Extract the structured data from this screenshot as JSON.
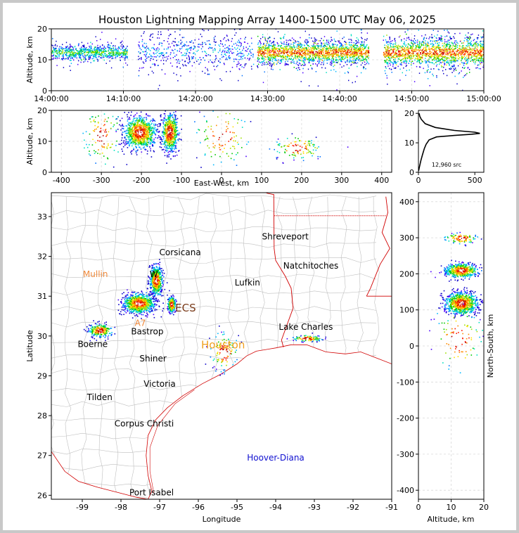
{
  "colors": {
    "frame": "#c8c8c8",
    "county_lines": "#bfbfbf",
    "state_lines": "#d10000",
    "coast": "#d10000",
    "grid": "#d9d9d9",
    "city_default": "#000000",
    "city_mullin": "#f08a3c",
    "city_a7": "#f08a3c",
    "city_houston": "#f0a020",
    "city_ecs": "#7a3b1a",
    "city_hoover": "#1010d0",
    "profile_line": "#000000"
  },
  "chart_data": [
    {
      "id": "altitude-time",
      "type": "scatter",
      "title": "Houston Lightning Mapping Array 1400-1500 UTC May 06, 2025",
      "ylabel": "Altitude, km",
      "xlim": [
        "14:00:00",
        "15:00:00"
      ],
      "ylim": [
        0,
        20
      ],
      "xticks": [
        "14:00:00",
        "14:10:00",
        "14:20:00",
        "14:30:00",
        "14:40:00",
        "14:50:00",
        "15:00:00"
      ],
      "yticks": [
        0,
        10,
        20
      ],
      "grid": true,
      "clusters": [
        {
          "t_start_min": 0,
          "t_end_min": 10.5,
          "alt_center_km": 12.5,
          "alt_spread_km": 1.2,
          "density": "medium"
        },
        {
          "t_start_min": 12,
          "t_end_min": 28,
          "alt_center_km": 13,
          "alt_spread_km": 3,
          "density": "sparse"
        },
        {
          "t_start_min": 28.5,
          "t_end_min": 44,
          "alt_center_km": 12.5,
          "alt_spread_km": 2,
          "density": "dense"
        },
        {
          "t_start_min": 46,
          "t_end_min": 60,
          "alt_center_km": 12.5,
          "alt_spread_km": 2.5,
          "density": "dense"
        }
      ]
    },
    {
      "id": "altitude-eastwest",
      "type": "scatter",
      "xlabel": "East-West, km",
      "ylabel": "Altitude, km",
      "xlim": [
        -425,
        425
      ],
      "ylim": [
        0,
        20
      ],
      "xticks": [
        -400,
        -300,
        -200,
        -100,
        0,
        100,
        200,
        300,
        400
      ],
      "yticks": [
        0,
        10,
        20
      ],
      "grid": true,
      "clusters": [
        {
          "x_km": -205,
          "alt_km": 13,
          "sx": 20,
          "sy": 2.6,
          "density": "very-dense"
        },
        {
          "x_km": -130,
          "alt_km": 13,
          "sx": 10,
          "sy": 3,
          "density": "dense"
        },
        {
          "x_km": 0,
          "alt_km": 12,
          "sx": 35,
          "sy": 5,
          "density": "sparse"
        },
        {
          "x_km": -300,
          "alt_km": 12,
          "sx": 25,
          "sy": 5,
          "density": "sparse"
        },
        {
          "x_km": 190,
          "alt_km": 8,
          "sx": 30,
          "sy": 2,
          "density": "sparse"
        }
      ]
    },
    {
      "id": "altitude-histogram",
      "type": "line",
      "xlim": [
        0,
        580
      ],
      "ylim": [
        0,
        21
      ],
      "xticks": [
        0,
        500
      ],
      "yticks": [
        0,
        10,
        20
      ],
      "annotation": "12,960 src",
      "profile": [
        [
          2,
          0.5
        ],
        [
          10,
          2
        ],
        [
          22,
          4
        ],
        [
          36,
          6
        ],
        [
          52,
          8
        ],
        [
          68,
          9.5
        ],
        [
          95,
          11
        ],
        [
          160,
          12
        ],
        [
          320,
          12.5
        ],
        [
          470,
          12.9
        ],
        [
          545,
          13.2
        ],
        [
          500,
          13.6
        ],
        [
          320,
          14.2
        ],
        [
          150,
          15.2
        ],
        [
          60,
          16.5
        ],
        [
          25,
          18
        ],
        [
          12,
          19
        ],
        [
          6,
          20
        ]
      ]
    },
    {
      "id": "plan-view",
      "type": "scatter",
      "xlabel": "Longitude",
      "ylabel": "Latitude",
      "xlim": [
        -99.8,
        -91
      ],
      "ylim": [
        25.9,
        33.6
      ],
      "xticks": [
        -99,
        -98,
        -97,
        -96,
        -95,
        -94,
        -93,
        -92,
        -91
      ],
      "yticks": [
        26,
        27,
        28,
        29,
        30,
        31,
        32,
        33
      ],
      "cities": [
        {
          "name": "Shreveport",
          "lon": -93.75,
          "lat": 32.5,
          "color_key": "city_default"
        },
        {
          "name": "Corsicana",
          "lon": -96.47,
          "lat": 32.1,
          "color_key": "city_default"
        },
        {
          "name": "Natchitoches",
          "lon": -93.09,
          "lat": 31.76,
          "color_key": "city_default"
        },
        {
          "name": "Mullin",
          "lon": -98.66,
          "lat": 31.55,
          "color_key": "city_mullin"
        },
        {
          "name": "W",
          "lon": -97.15,
          "lat": 31.55,
          "color_key": "city_default"
        },
        {
          "name": "Lufkin",
          "lon": -94.73,
          "lat": 31.34,
          "color_key": "city_default"
        },
        {
          "name": "ECS",
          "lon": -96.33,
          "lat": 30.69,
          "color_key": "city_ecs"
        },
        {
          "name": "A7",
          "lon": -97.5,
          "lat": 30.32,
          "color_key": "city_a7"
        },
        {
          "name": "Lake Charles",
          "lon": -93.22,
          "lat": 30.23,
          "color_key": "city_default"
        },
        {
          "name": "Bastrop",
          "lon": -97.32,
          "lat": 30.11,
          "color_key": "city_default"
        },
        {
          "name": "Houston",
          "lon": -95.36,
          "lat": 29.76,
          "color_key": "city_houston"
        },
        {
          "name": "Boerne",
          "lon": -98.73,
          "lat": 29.79,
          "color_key": "city_default"
        },
        {
          "name": "Shiner",
          "lon": -97.17,
          "lat": 29.43,
          "color_key": "city_default"
        },
        {
          "name": "Victoria",
          "lon": -97.0,
          "lat": 28.8,
          "color_key": "city_default"
        },
        {
          "name": "Tilden",
          "lon": -98.55,
          "lat": 28.46,
          "color_key": "city_default"
        },
        {
          "name": "Corpus Christi",
          "lon": -97.4,
          "lat": 27.8,
          "color_key": "city_default"
        },
        {
          "name": "Hoover-Diana",
          "lon": -94.0,
          "lat": 26.94,
          "color_key": "city_hoover"
        },
        {
          "name": "Port Isabel",
          "lon": -97.21,
          "lat": 26.07,
          "color_key": "city_default"
        }
      ],
      "clusters": [
        {
          "lon": -97.55,
          "lat": 30.83,
          "sx": 0.2,
          "sy": 0.12,
          "density": "very-dense"
        },
        {
          "lon": -97.1,
          "lat": 31.4,
          "sx": 0.08,
          "sy": 0.18,
          "density": "dense"
        },
        {
          "lon": -95.35,
          "lat": 29.6,
          "sx": 0.18,
          "sy": 0.25,
          "density": "sparse"
        },
        {
          "lon": -98.55,
          "lat": 30.15,
          "sx": 0.15,
          "sy": 0.08,
          "density": "medium"
        },
        {
          "lon": -96.7,
          "lat": 30.8,
          "sx": 0.05,
          "sy": 0.1,
          "density": "medium"
        },
        {
          "lon": -93.2,
          "lat": 29.95,
          "sx": 0.2,
          "sy": 0.04,
          "density": "sparse"
        }
      ]
    },
    {
      "id": "northsouth-altitude",
      "type": "scatter",
      "xlabel": "Altitude, km",
      "ylabel": "North-South, km",
      "xlim": [
        0,
        20
      ],
      "ylim": [
        -425,
        425
      ],
      "xticks": [
        0,
        10,
        20
      ],
      "yticks": [
        -400,
        -300,
        -200,
        -100,
        0,
        100,
        200,
        300,
        400
      ],
      "grid": true,
      "clusters": [
        {
          "alt_km": 13,
          "y_km": 120,
          "sx": 2.5,
          "sy": 15,
          "density": "very-dense"
        },
        {
          "alt_km": 13,
          "y_km": 210,
          "sx": 2.5,
          "sy": 10,
          "density": "dense"
        },
        {
          "alt_km": 12,
          "y_km": 20,
          "sx": 4,
          "sy": 45,
          "density": "sparse"
        },
        {
          "alt_km": 13,
          "y_km": 300,
          "sx": 2.5,
          "sy": 8,
          "density": "sparse"
        }
      ]
    }
  ]
}
